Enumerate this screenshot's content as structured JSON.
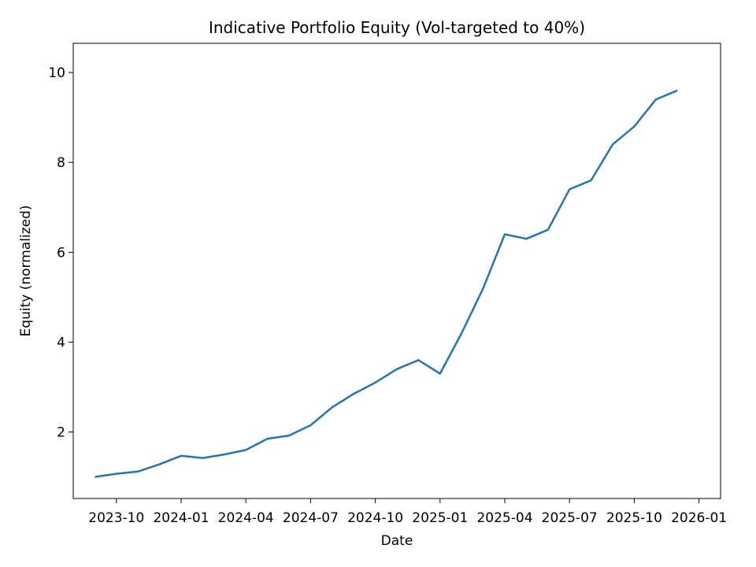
{
  "chart_data": {
    "type": "line",
    "title": "Indicative Portfolio Equity (Vol-targeted to 40%)",
    "xlabel": "Date",
    "ylabel": "Equity (normalized)",
    "x": [
      "2023-09",
      "2023-10",
      "2023-11",
      "2023-12",
      "2024-01",
      "2024-02",
      "2024-03",
      "2024-04",
      "2024-05",
      "2024-06",
      "2024-07",
      "2024-08",
      "2024-09",
      "2024-10",
      "2024-11",
      "2024-12",
      "2025-01",
      "2025-02",
      "2025-03",
      "2025-04",
      "2025-05",
      "2025-06",
      "2025-07",
      "2025-08",
      "2025-09",
      "2025-10",
      "2025-11",
      "2025-12"
    ],
    "series": [
      {
        "name": "Equity",
        "color": "#1f77b4",
        "values": [
          1.0,
          1.07,
          1.12,
          1.28,
          1.47,
          1.42,
          1.5,
          1.6,
          1.85,
          1.92,
          2.15,
          2.55,
          2.85,
          3.1,
          3.4,
          3.6,
          3.3,
          4.2,
          5.2,
          6.4,
          6.3,
          6.5,
          7.4,
          7.6,
          8.4,
          8.8,
          9.4,
          9.6
        ]
      }
    ],
    "xlim": [
      "2023-08",
      "2026-02"
    ],
    "xticks": [
      "2023-10",
      "2024-01",
      "2024-04",
      "2024-07",
      "2024-10",
      "2025-01",
      "2025-04",
      "2025-07",
      "2025-10",
      "2026-01"
    ],
    "ylim": [
      0.52,
      10.65
    ],
    "yticks": [
      2,
      4,
      6,
      8,
      10
    ],
    "grid": false
  }
}
